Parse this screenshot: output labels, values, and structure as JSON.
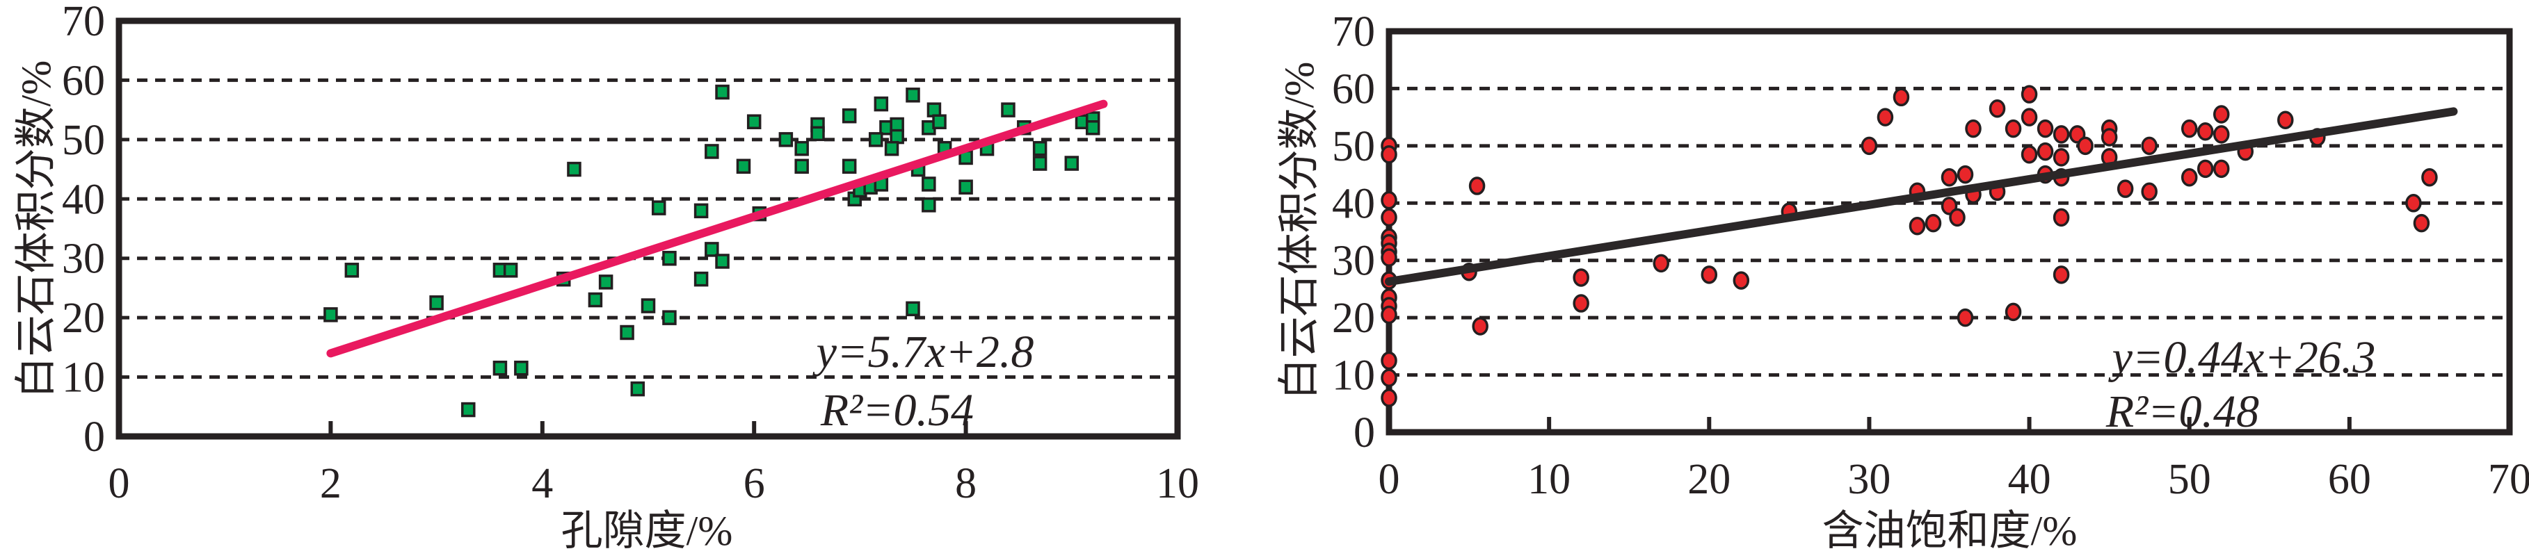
{
  "colors": {
    "frame": "#262122",
    "text": "#262122",
    "background": "#ffffff",
    "left_marker_fill": "#00A651",
    "right_marker_fill": "#E8262A",
    "marker_edge": "#231F20",
    "left_trend": "#E9195F",
    "right_trend": "#2B2728"
  },
  "chart_data": [
    {
      "type": "scatter",
      "title": "",
      "xlabel": "孔隙度/%",
      "ylabel": "白云石体积分数/%",
      "xlim": [
        0,
        10
      ],
      "ylim": [
        0,
        70
      ],
      "x_ticks": [
        0,
        2,
        4,
        6,
        8,
        10
      ],
      "y_ticks": [
        0,
        10,
        20,
        30,
        40,
        50,
        60,
        70
      ],
      "grid_y": [
        10,
        20,
        30,
        40,
        50,
        60
      ],
      "grid_style": "dashed",
      "legend": "none",
      "equation": "y=5.7x+2.8",
      "r_squared": "R²=0.54",
      "marker": {
        "shape": "square",
        "fill": "#00A651",
        "edge": "#231F20"
      },
      "trend": {
        "x_start": 2.0,
        "y_start": 14.0,
        "x_end": 9.3,
        "y_end": 56.0,
        "color": "#E9195F"
      },
      "points": [
        [
          2.0,
          20.5
        ],
        [
          2.2,
          28
        ],
        [
          3.0,
          22.5
        ],
        [
          3.3,
          4.5
        ],
        [
          3.6,
          28
        ],
        [
          3.7,
          28
        ],
        [
          3.6,
          11.5
        ],
        [
          3.8,
          11.5
        ],
        [
          4.2,
          26.5
        ],
        [
          4.3,
          45
        ],
        [
          4.5,
          23
        ],
        [
          4.6,
          26
        ],
        [
          4.8,
          17.5
        ],
        [
          4.9,
          8
        ],
        [
          5.0,
          22
        ],
        [
          5.1,
          38.5
        ],
        [
          5.2,
          30
        ],
        [
          5.2,
          20
        ],
        [
          5.5,
          26.5
        ],
        [
          5.5,
          38
        ],
        [
          5.6,
          48
        ],
        [
          5.6,
          31.5
        ],
        [
          5.7,
          58
        ],
        [
          5.7,
          29.5
        ],
        [
          5.9,
          45.5
        ],
        [
          6.0,
          53
        ],
        [
          6.05,
          37.5
        ],
        [
          6.3,
          50
        ],
        [
          6.45,
          48.5
        ],
        [
          6.45,
          45.5
        ],
        [
          6.6,
          52.5
        ],
        [
          6.6,
          51
        ],
        [
          6.9,
          54
        ],
        [
          6.9,
          45.5
        ],
        [
          6.95,
          40
        ],
        [
          7.0,
          41.5
        ],
        [
          7.1,
          42
        ],
        [
          7.2,
          42.5
        ],
        [
          7.2,
          56
        ],
        [
          7.25,
          52
        ],
        [
          7.15,
          50
        ],
        [
          7.35,
          52.5
        ],
        [
          7.35,
          50.5
        ],
        [
          7.3,
          48.5
        ],
        [
          7.5,
          57.5
        ],
        [
          7.5,
          21.5
        ],
        [
          7.55,
          45
        ],
        [
          7.65,
          52
        ],
        [
          7.65,
          42.5
        ],
        [
          7.65,
          39
        ],
        [
          7.7,
          55
        ],
        [
          7.75,
          53
        ],
        [
          7.8,
          48.5
        ],
        [
          8.0,
          47
        ],
        [
          8.0,
          42
        ],
        [
          8.2,
          48.5
        ],
        [
          8.4,
          55
        ],
        [
          8.55,
          52
        ],
        [
          8.7,
          48.5
        ],
        [
          8.7,
          46
        ],
        [
          9.0,
          46
        ],
        [
          9.1,
          53
        ],
        [
          9.2,
          53.5
        ],
        [
          9.2,
          52
        ]
      ]
    },
    {
      "type": "scatter",
      "title": "",
      "xlabel": "含油饱和度/%",
      "ylabel": "白云石体积分数/%",
      "xlim": [
        0,
        70
      ],
      "ylim": [
        0,
        70
      ],
      "x_ticks": [
        0,
        10,
        20,
        30,
        40,
        50,
        60,
        70
      ],
      "y_ticks": [
        0,
        10,
        20,
        30,
        40,
        50,
        60,
        70
      ],
      "grid_y": [
        10,
        20,
        30,
        40,
        50,
        60
      ],
      "grid_style": "dashed",
      "legend": "none",
      "equation": "y=0.44x+26.3",
      "r_squared": "R²=0.48",
      "marker": {
        "shape": "circle",
        "fill": "#E8262A",
        "edge": "#231F20"
      },
      "trend": {
        "x_start": 0,
        "y_start": 26.3,
        "x_end": 66.5,
        "y_end": 56.0,
        "color": "#2B2728"
      },
      "points": [
        [
          0,
          50
        ],
        [
          0,
          48.5
        ],
        [
          0,
          40.5
        ],
        [
          0,
          37.5
        ],
        [
          0,
          34
        ],
        [
          0,
          33
        ],
        [
          0,
          31.5
        ],
        [
          0,
          30.5
        ],
        [
          0,
          26.5
        ],
        [
          0,
          23.5
        ],
        [
          0,
          22
        ],
        [
          0,
          20.5
        ],
        [
          0,
          12.5
        ],
        [
          0,
          9.5
        ],
        [
          0,
          6
        ],
        [
          5,
          28
        ],
        [
          5.5,
          43
        ],
        [
          5.7,
          18.5
        ],
        [
          12,
          27
        ],
        [
          12,
          22.5
        ],
        [
          17,
          29.5
        ],
        [
          20,
          27.5
        ],
        [
          22,
          26.5
        ],
        [
          25,
          38.5
        ],
        [
          30,
          50
        ],
        [
          31,
          55
        ],
        [
          32,
          58.5
        ],
        [
          33,
          42
        ],
        [
          33,
          36
        ],
        [
          34,
          36.5
        ],
        [
          35,
          44.5
        ],
        [
          36,
          45
        ],
        [
          35,
          39.5
        ],
        [
          35.5,
          37.5
        ],
        [
          36.5,
          41.5
        ],
        [
          38,
          42
        ],
        [
          36.5,
          53
        ],
        [
          38,
          56.5
        ],
        [
          39,
          53
        ],
        [
          40,
          59
        ],
        [
          40,
          55
        ],
        [
          41,
          53
        ],
        [
          42,
          52
        ],
        [
          43,
          52
        ],
        [
          40,
          48.5
        ],
        [
          41,
          49
        ],
        [
          42,
          48
        ],
        [
          43.5,
          50
        ],
        [
          41,
          45
        ],
        [
          42,
          44.5
        ],
        [
          42,
          37.5
        ],
        [
          42,
          27.5
        ],
        [
          39,
          21
        ],
        [
          36,
          20
        ],
        [
          45,
          53
        ],
        [
          45,
          51.5
        ],
        [
          45,
          48
        ],
        [
          46,
          42.5
        ],
        [
          47.5,
          50
        ],
        [
          47.5,
          42
        ],
        [
          50,
          53
        ],
        [
          50,
          44.5
        ],
        [
          51,
          52.5
        ],
        [
          51,
          46
        ],
        [
          52,
          55.5
        ],
        [
          52,
          52
        ],
        [
          52,
          46
        ],
        [
          53.5,
          49
        ],
        [
          56,
          54.5
        ],
        [
          58,
          51.5
        ],
        [
          64,
          40
        ],
        [
          64.5,
          36.5
        ],
        [
          65,
          44.5
        ]
      ]
    }
  ]
}
